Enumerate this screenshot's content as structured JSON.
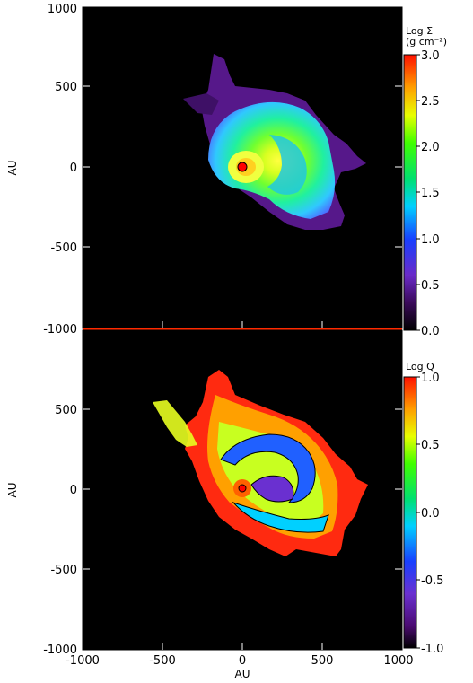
{
  "chart_data": [
    {
      "type": "heatmap",
      "panel": "top",
      "quantity_label": "Log Σ",
      "units_label": "(g cm⁻²)",
      "colorbar_ticks": [
        "3.0",
        "2.5",
        "2.0",
        "1.5",
        "1.0",
        "0.5",
        "0.0"
      ],
      "colorbar_range": [
        0.0,
        3.0
      ],
      "xlim": [
        -1000,
        1000
      ],
      "ylim": [
        -1000,
        1000
      ],
      "y_ticks": [
        "1000",
        "500",
        "0",
        "-500",
        "-1000"
      ],
      "ylabel": "AU",
      "background_value": 0.0
    },
    {
      "type": "heatmap",
      "panel": "bottom",
      "quantity_label": "Log Q",
      "colorbar_ticks": [
        "1.0",
        "0.5",
        "0.0",
        "-0.5",
        "-1.0"
      ],
      "colorbar_range": [
        -1.0,
        1.0
      ],
      "xlim": [
        -1000,
        1000
      ],
      "ylim": [
        -1000,
        1000
      ],
      "x_ticks": [
        "-1000",
        "-500",
        "0",
        "500",
        "1000"
      ],
      "y_ticks": [
        "500",
        "0",
        "-500",
        "-1000"
      ],
      "xlabel": "AU",
      "ylabel": "AU",
      "contour_color": "#000000",
      "background_value": -1.0
    }
  ],
  "colors": {
    "plot_background": "#000000",
    "divider": "#ff2a00",
    "star_marker": "#ff0000"
  }
}
